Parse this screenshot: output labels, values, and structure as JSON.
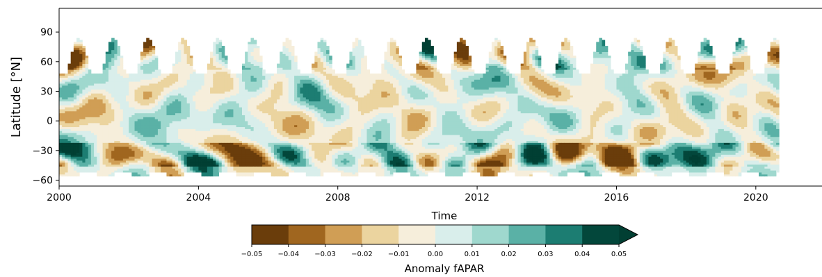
{
  "chart_data": {
    "type": "heatmap",
    "title": "",
    "xlabel": "Time",
    "ylabel": "Latitude [°N]",
    "xlim": [
      2000,
      2021.9
    ],
    "ylim": [
      -66,
      114
    ],
    "x_ticks": [
      2000,
      2004,
      2008,
      2012,
      2016,
      2020
    ],
    "x_tick_labels": [
      "2000",
      "2004",
      "2008",
      "2012",
      "2016",
      "2020"
    ],
    "y_ticks": [
      90,
      60,
      30,
      0,
      -30,
      -60
    ],
    "y_tick_labels": [
      "90",
      "60",
      "30",
      "0",
      "−30",
      "−60"
    ],
    "data_extent": {
      "time_start": 2000,
      "time_end": 2020.65,
      "lat_min": -56,
      "lat_max": 83
    },
    "grid": false,
    "colorbar": {
      "label": "Anomaly fAPAR",
      "orientation": "horizontal",
      "extend": "max",
      "boundaries": [
        -0.05,
        -0.04,
        -0.03,
        -0.02,
        -0.01,
        0.0,
        0.01,
        0.02,
        0.03,
        0.04,
        0.05
      ],
      "tick_labels": [
        "−0.05",
        "−0.04",
        "−0.03",
        "−0.02",
        "−0.01",
        "0.00",
        "0.01",
        "0.02",
        "0.03",
        "0.04",
        "0.05"
      ],
      "colors": [
        "#6a3d0b",
        "#a0661f",
        "#d09e55",
        "#ebd49f",
        "#f6eedb",
        "#d9eeeb",
        "#9fd8ce",
        "#5ab1a6",
        "#1c7d72",
        "#03473b"
      ],
      "over_color": "#013f33"
    },
    "colormap": "BrBG"
  }
}
